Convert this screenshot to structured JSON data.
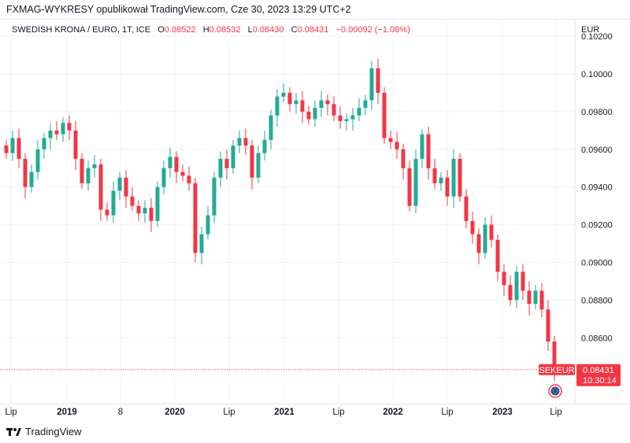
{
  "publisher_line": "FXMAG-WYKRESY opublikował TradingView.com, Cze 30, 2023 13:29 UTC+2",
  "legend": {
    "symbol": "SWEDISH KRONA / EURO, 1T, ICE",
    "o_label": "O",
    "o": "0.08522",
    "h_label": "H",
    "h": "0.08532",
    "l_label": "L",
    "l": "0.08430",
    "c_label": "C",
    "c": "0.08431",
    "change": "−0.00092 (−1.08%)"
  },
  "currency": "EUR",
  "last_price_tag": {
    "symbol": "SEKEUR",
    "price": "0.08431",
    "countdown": "10:30:14"
  },
  "footer_brand": "TradingView",
  "colors": {
    "up": "#22ab94",
    "down": "#f23645",
    "grid": "#f0f3fa"
  },
  "chart_data": {
    "type": "candlestick",
    "ylim": [
      0.0825,
      0.1025
    ],
    "y_ticks": [
      "0.10200",
      "0.10000",
      "0.09800",
      "0.09600",
      "0.09400",
      "0.09200",
      "0.09000",
      "0.08800",
      "0.08600"
    ],
    "x_ticks": [
      "Lip",
      "2019",
      "8",
      "2020",
      "Lip",
      "2021",
      "Lip",
      "2022",
      "Lip",
      "2023",
      "Lip"
    ],
    "grid": true,
    "closes": [
      0.0958,
      0.0966,
      0.0955,
      0.094,
      0.0948,
      0.096,
      0.0966,
      0.097,
      0.0968,
      0.0974,
      0.097,
      0.0955,
      0.0942,
      0.095,
      0.0952,
      0.0928,
      0.0925,
      0.0938,
      0.0945,
      0.0935,
      0.093,
      0.0926,
      0.0929,
      0.0922,
      0.094,
      0.095,
      0.0956,
      0.0948,
      0.0946,
      0.0942,
      0.0905,
      0.0915,
      0.0925,
      0.0945,
      0.0955,
      0.095,
      0.0962,
      0.0966,
      0.0962,
      0.0945,
      0.0958,
      0.0965,
      0.0978,
      0.0988,
      0.099,
      0.0984,
      0.0986,
      0.098,
      0.0976,
      0.0982,
      0.0986,
      0.0984,
      0.0978,
      0.0975,
      0.0976,
      0.0978,
      0.0982,
      0.0986,
      0.1003,
      0.099,
      0.0966,
      0.0964,
      0.096,
      0.095,
      0.093,
      0.0955,
      0.0968,
      0.095,
      0.0942,
      0.0945,
      0.0935,
      0.0955,
      0.0935,
      0.0922,
      0.0915,
      0.0905,
      0.092,
      0.0912,
      0.0895,
      0.0888,
      0.088,
      0.0895,
      0.0885,
      0.0878,
      0.0885,
      0.0875,
      0.0858,
      0.08431
    ],
    "last": 0.08431
  }
}
